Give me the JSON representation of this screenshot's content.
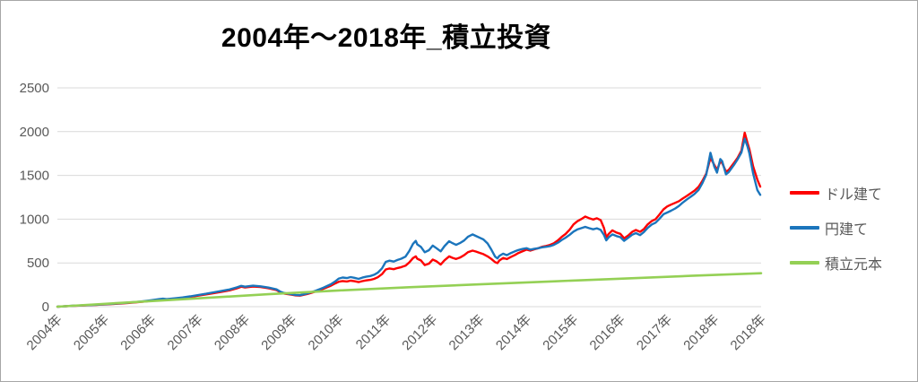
{
  "chart_data": {
    "type": "line",
    "title": "2004年～2018年_積立投資",
    "xlabel": "",
    "ylabel": "",
    "grid": true,
    "legend_position": "right",
    "y_axis": {
      "range": [
        0,
        2500
      ],
      "ticks": [
        0,
        500,
        1000,
        1500,
        2000,
        2500
      ]
    },
    "x_axis": {
      "range_years": [
        2004,
        2019
      ],
      "labels": [
        "2004年",
        "2005年",
        "2006年",
        "2007年",
        "2008年",
        "2009年",
        "2010年",
        "2011年",
        "2012年",
        "2013年",
        "2014年",
        "2015年",
        "2016年",
        "2017年",
        "2018年",
        "2018年"
      ]
    },
    "x": [
      2004.0,
      2004.08,
      2004.17,
      2004.25,
      2004.33,
      2004.42,
      2004.5,
      2004.58,
      2004.67,
      2004.75,
      2004.83,
      2004.92,
      2005.0,
      2005.17,
      2005.33,
      2005.5,
      2005.67,
      2005.83,
      2006.0,
      2006.17,
      2006.25,
      2006.33,
      2006.5,
      2006.67,
      2006.83,
      2007.0,
      2007.17,
      2007.33,
      2007.5,
      2007.67,
      2007.83,
      2007.92,
      2008.0,
      2008.17,
      2008.33,
      2008.5,
      2008.67,
      2008.75,
      2008.83,
      2008.92,
      2009.0,
      2009.08,
      2009.17,
      2009.33,
      2009.5,
      2009.67,
      2009.83,
      2009.92,
      2010.0,
      2010.08,
      2010.17,
      2010.25,
      2010.33,
      2010.42,
      2010.5,
      2010.58,
      2010.67,
      2010.75,
      2010.83,
      2010.92,
      2011.0,
      2011.08,
      2011.17,
      2011.25,
      2011.33,
      2011.42,
      2011.5,
      2011.58,
      2011.64,
      2011.67,
      2011.75,
      2011.83,
      2011.92,
      2012.0,
      2012.08,
      2012.17,
      2012.25,
      2012.35,
      2012.42,
      2012.5,
      2012.58,
      2012.67,
      2012.75,
      2012.85,
      2012.92,
      2013.0,
      2013.08,
      2013.17,
      2013.25,
      2013.33,
      2013.38,
      2013.42,
      2013.5,
      2013.58,
      2013.67,
      2013.75,
      2013.83,
      2013.92,
      2014.0,
      2014.08,
      2014.17,
      2014.25,
      2014.33,
      2014.42,
      2014.5,
      2014.58,
      2014.67,
      2014.75,
      2014.83,
      2014.92,
      2015.0,
      2015.08,
      2015.17,
      2015.25,
      2015.33,
      2015.42,
      2015.5,
      2015.58,
      2015.65,
      2015.7,
      2015.75,
      2015.83,
      2015.92,
      2016.0,
      2016.08,
      2016.17,
      2016.25,
      2016.33,
      2016.42,
      2016.5,
      2016.58,
      2016.67,
      2016.75,
      2016.83,
      2016.92,
      2017.0,
      2017.08,
      2017.17,
      2017.25,
      2017.33,
      2017.42,
      2017.5,
      2017.58,
      2017.67,
      2017.75,
      2017.83,
      2017.92,
      2018.0,
      2018.06,
      2018.13,
      2018.17,
      2018.25,
      2018.31,
      2018.42,
      2018.5,
      2018.58,
      2018.65,
      2018.71,
      2018.75,
      2018.83,
      2018.92,
      2018.98
    ],
    "series": [
      {
        "name": "ドル建て",
        "color": "#fe0000",
        "values": [
          0,
          2,
          5,
          7,
          9,
          11,
          13,
          15,
          17,
          19,
          21,
          24,
          26,
          30,
          36,
          42,
          49,
          57,
          68,
          80,
          85,
          81,
          90,
          100,
          112,
          126,
          140,
          155,
          170,
          186,
          210,
          228,
          219,
          230,
          224,
          210,
          190,
          165,
          150,
          142,
          136,
          129,
          126,
          146,
          172,
          205,
          240,
          265,
          285,
          293,
          288,
          297,
          291,
          281,
          292,
          300,
          306,
          318,
          336,
          372,
          425,
          436,
          428,
          442,
          452,
          468,
          505,
          555,
          575,
          548,
          528,
          475,
          492,
          538,
          518,
          482,
          530,
          575,
          558,
          545,
          560,
          588,
          622,
          640,
          630,
          615,
          600,
          575,
          545,
          508,
          498,
          528,
          556,
          544,
          570,
          590,
          614,
          634,
          652,
          640,
          656,
          668,
          684,
          694,
          706,
          724,
          758,
          798,
          830,
          880,
          940,
          975,
          1002,
          1030,
          1012,
          996,
          1010,
          990,
          900,
          792,
          830,
          872,
          846,
          832,
          782,
          815,
          855,
          876,
          856,
          886,
          940,
          980,
          1000,
          1050,
          1112,
          1145,
          1166,
          1186,
          1206,
          1236,
          1266,
          1296,
          1326,
          1372,
          1440,
          1522,
          1700,
          1622,
          1562,
          1658,
          1640,
          1542,
          1562,
          1640,
          1702,
          1782,
          1988,
          1872,
          1800,
          1602,
          1452,
          1372
        ]
      },
      {
        "name": "円建て",
        "color": "#1b75bc",
        "values": [
          0,
          2,
          5,
          8,
          10,
          12,
          14,
          16,
          18,
          20,
          23,
          26,
          28,
          33,
          39,
          46,
          53,
          62,
          74,
          86,
          91,
          86,
          95,
          106,
          118,
          133,
          148,
          164,
          180,
          197,
          221,
          238,
          228,
          240,
          233,
          218,
          198,
          172,
          157,
          148,
          141,
          134,
          131,
          152,
          180,
          216,
          256,
          288,
          322,
          333,
          327,
          338,
          330,
          318,
          332,
          342,
          350,
          365,
          388,
          438,
          512,
          526,
          515,
          534,
          548,
          572,
          636,
          718,
          752,
          712,
          682,
          622,
          645,
          698,
          668,
          632,
          692,
          748,
          726,
          706,
          726,
          756,
          798,
          826,
          808,
          788,
          768,
          722,
          652,
          572,
          552,
          580,
          606,
          588,
          614,
          632,
          648,
          660,
          668,
          652,
          662,
          668,
          678,
          684,
          692,
          706,
          732,
          762,
          788,
          822,
          858,
          882,
          898,
          912,
          898,
          884,
          896,
          878,
          820,
          758,
          792,
          826,
          806,
          794,
          752,
          788,
          822,
          840,
          818,
          852,
          900,
          940,
          960,
          1002,
          1056,
          1076,
          1096,
          1122,
          1152,
          1190,
          1226,
          1256,
          1288,
          1336,
          1414,
          1508,
          1758,
          1602,
          1532,
          1686,
          1662,
          1512,
          1538,
          1618,
          1684,
          1760,
          1920,
          1832,
          1752,
          1522,
          1332,
          1278
        ]
      },
      {
        "name": "積立元本",
        "color": "#94d055",
        "points": [
          [
            2004.0,
            0
          ],
          [
            2005.5,
            48
          ],
          [
            2007.0,
            95
          ],
          [
            2008.5,
            142
          ],
          [
            2010.0,
            185
          ],
          [
            2011.5,
            222
          ],
          [
            2013.0,
            255
          ],
          [
            2014.5,
            288
          ],
          [
            2016.0,
            320
          ],
          [
            2017.5,
            352
          ],
          [
            2019.0,
            382
          ]
        ]
      }
    ]
  },
  "style_colors": {
    "grid": "#d9d9d9",
    "axis_text": "#595959",
    "frame_border": "#a6a6a6",
    "title_text": "#000000"
  }
}
